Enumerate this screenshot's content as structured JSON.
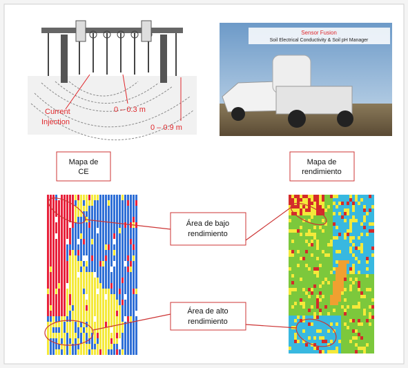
{
  "schematic": {
    "current_injection": [
      "Current",
      "Injection"
    ],
    "depth_shallow": "0 – 0.3 m",
    "depth_deep": "0 – 0.9 m"
  },
  "photo": {
    "banner_title": "Sensor Fusion",
    "banner_subtitle": "Soil Electrical Conductivity & Soil pH Manager"
  },
  "maps": [
    {
      "title": [
        "Mapa de",
        "CE"
      ]
    },
    {
      "title": [
        "Mapa de",
        "rendimiento"
      ]
    }
  ],
  "callouts": [
    {
      "label": [
        "Área de bajo",
        "rendimiento"
      ]
    },
    {
      "label": [
        "Área de alto",
        "rendimiento"
      ]
    }
  ]
}
